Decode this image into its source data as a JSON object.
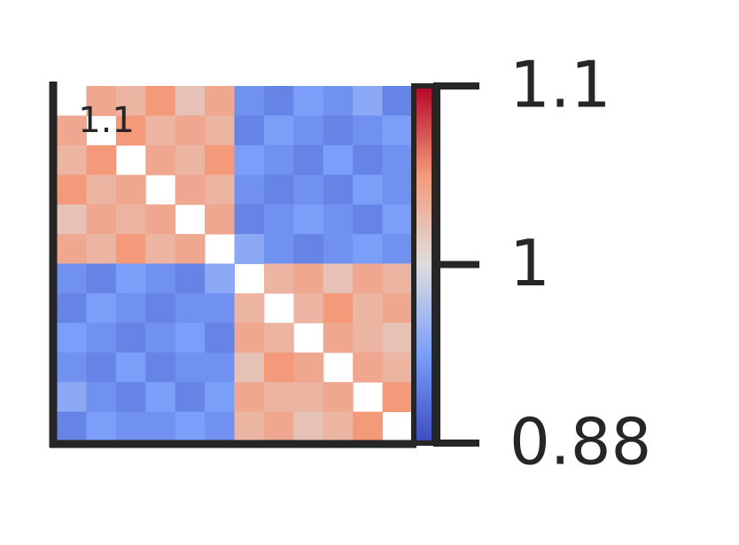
{
  "chart_data": {
    "type": "heatmap",
    "annotation": "1.1",
    "colormap": "coolwarm",
    "vlim": [
      0.88,
      1.1
    ],
    "norm_center": 1,
    "colorbar_ticks": [
      0.88,
      1,
      1.1
    ],
    "values": [
      [
        null,
        1.04,
        1.03,
        1.05,
        1.02,
        1.04,
        0.93,
        0.92,
        0.94,
        0.93,
        0.95,
        0.92
      ],
      [
        1.04,
        null,
        1.05,
        1.03,
        1.04,
        1.03,
        0.92,
        0.94,
        0.93,
        0.92,
        0.93,
        0.94
      ],
      [
        1.03,
        1.05,
        null,
        1.04,
        1.03,
        1.05,
        0.94,
        0.93,
        0.92,
        0.94,
        0.92,
        0.93
      ],
      [
        1.05,
        1.03,
        1.04,
        null,
        1.04,
        1.03,
        0.93,
        0.92,
        0.93,
        0.92,
        0.94,
        0.93
      ],
      [
        1.02,
        1.04,
        1.03,
        1.04,
        null,
        1.04,
        0.92,
        0.93,
        0.94,
        0.93,
        0.92,
        0.94
      ],
      [
        1.04,
        1.03,
        1.05,
        1.03,
        1.04,
        null,
        0.95,
        0.93,
        0.92,
        0.93,
        0.94,
        0.93
      ],
      [
        0.93,
        0.92,
        0.94,
        0.93,
        0.92,
        0.95,
        null,
        1.03,
        1.04,
        1.02,
        1.04,
        1.03
      ],
      [
        0.92,
        0.94,
        0.93,
        0.92,
        0.93,
        0.93,
        1.03,
        null,
        1.03,
        1.05,
        1.03,
        1.04
      ],
      [
        0.94,
        0.93,
        0.92,
        0.93,
        0.94,
        0.92,
        1.04,
        1.03,
        null,
        1.04,
        1.03,
        1.02
      ],
      [
        0.93,
        0.92,
        0.94,
        0.92,
        0.93,
        0.93,
        1.02,
        1.05,
        1.04,
        null,
        1.04,
        1.03
      ],
      [
        0.95,
        0.93,
        0.92,
        0.94,
        0.92,
        0.94,
        1.04,
        1.03,
        1.03,
        1.04,
        null,
        1.05
      ],
      [
        0.92,
        0.94,
        0.93,
        0.93,
        0.94,
        0.93,
        1.03,
        1.04,
        1.02,
        1.03,
        1.05,
        null
      ]
    ]
  }
}
